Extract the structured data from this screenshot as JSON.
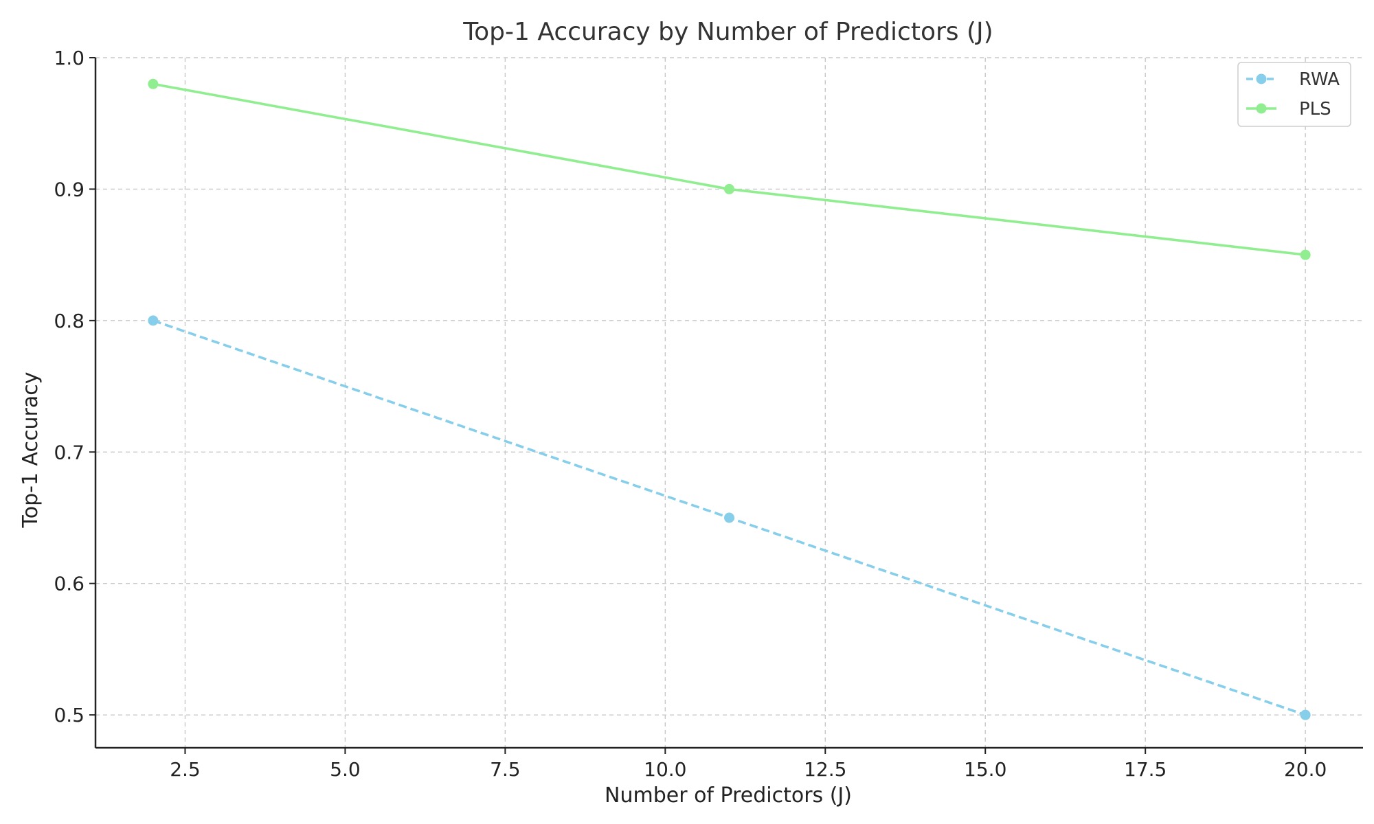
{
  "chart_data": {
    "type": "line",
    "title": "Top-1 Accuracy by Number of Predictors (J)",
    "xlabel": "Number of Predictors (J)",
    "ylabel": "Top-1 Accuracy",
    "xlim": [
      1.1,
      20.9
    ],
    "ylim": [
      0.475,
      1.0
    ],
    "xticks": [
      2.5,
      5.0,
      7.5,
      10.0,
      12.5,
      15.0,
      17.5,
      20.0
    ],
    "xtick_labels": [
      "2.5",
      "5.0",
      "7.5",
      "10.0",
      "12.5",
      "15.0",
      "17.5",
      "20.0"
    ],
    "yticks": [
      0.5,
      0.6,
      0.7,
      0.8,
      0.9,
      1.0
    ],
    "ytick_labels": [
      "0.5",
      "0.6",
      "0.7",
      "0.8",
      "0.9",
      "1.0"
    ],
    "grid": true,
    "legend_position": "top-right",
    "series": [
      {
        "name": "RWA",
        "x": [
          2,
          11,
          20
        ],
        "y": [
          0.8,
          0.65,
          0.5
        ],
        "color": "#87CEEB",
        "line_style": "dashed",
        "marker": "circle"
      },
      {
        "name": "PLS",
        "x": [
          2,
          11,
          20
        ],
        "y": [
          0.98,
          0.9,
          0.85
        ],
        "color": "#90EE90",
        "line_style": "solid",
        "marker": "circle"
      }
    ]
  }
}
